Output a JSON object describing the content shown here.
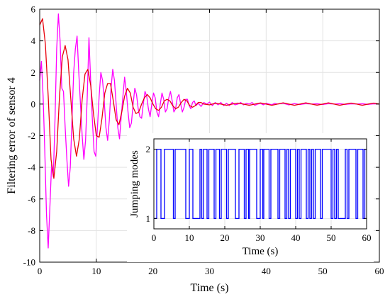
{
  "chart_data": [
    {
      "type": "line",
      "xlabel": "Time (s)",
      "ylabel": "Filtering error of sensor 4",
      "xlim": [
        0,
        60
      ],
      "ylim": [
        -10,
        6
      ],
      "xticks": [
        0,
        10,
        20,
        30,
        40,
        50,
        60
      ],
      "yticks": [
        -10,
        -8,
        -6,
        -4,
        -2,
        0,
        2,
        4,
        6
      ],
      "grid": true,
      "colors": {
        "red_series": "#e8000b",
        "magenta_series": "#ff00ff"
      },
      "series": [
        {
          "points": [
            [
              0,
              5.0
            ],
            [
              0.5,
              5.4
            ],
            [
              1,
              3.8
            ],
            [
              1.5,
              0.5
            ],
            [
              2,
              -3.5
            ],
            [
              2.5,
              -4.7
            ],
            [
              3,
              -3.0
            ],
            [
              3.5,
              0.5
            ],
            [
              4,
              3.0
            ],
            [
              4.5,
              3.7
            ],
            [
              5,
              2.8
            ],
            [
              5.5,
              0.3
            ],
            [
              6,
              -2.2
            ],
            [
              6.5,
              -3.3
            ],
            [
              7,
              -2.2
            ],
            [
              7.5,
              0.3
            ],
            [
              8,
              1.9
            ],
            [
              8.5,
              2.2
            ],
            [
              9,
              1.2
            ],
            [
              9.5,
              -0.6
            ],
            [
              10,
              -2.0
            ],
            [
              10.5,
              -2.1
            ],
            [
              11,
              -0.9
            ],
            [
              11.5,
              0.7
            ],
            [
              12,
              1.3
            ],
            [
              12.5,
              1.3
            ],
            [
              13,
              0.2
            ],
            [
              13.5,
              -1.0
            ],
            [
              14,
              -1.3
            ],
            [
              14.5,
              -0.5
            ],
            [
              15,
              0.5
            ],
            [
              15.5,
              1.0
            ],
            [
              16,
              0.7
            ],
            [
              16.5,
              -0.2
            ],
            [
              17,
              -0.6
            ],
            [
              17.5,
              -0.5
            ],
            [
              18,
              0.0
            ],
            [
              18.5,
              0.4
            ],
            [
              19,
              0.6
            ],
            [
              19.5,
              0.4
            ],
            [
              20,
              0.0
            ],
            [
              20.5,
              -0.3
            ],
            [
              21,
              -0.4
            ],
            [
              21.5,
              -0.2
            ],
            [
              22,
              0.2
            ],
            [
              22.5,
              0.3
            ],
            [
              23,
              0.2
            ],
            [
              23.5,
              -0.1
            ],
            [
              24,
              -0.3
            ],
            [
              24.5,
              -0.2
            ],
            [
              25,
              0.1
            ],
            [
              25.5,
              0.3
            ],
            [
              26,
              0.2
            ],
            [
              26.5,
              -0.1
            ],
            [
              27,
              -0.2
            ],
            [
              27.5,
              -0.1
            ],
            [
              28,
              0.1
            ],
            [
              28.5,
              0.1
            ],
            [
              29,
              0.0
            ],
            [
              30,
              -0.05
            ],
            [
              31,
              0.05
            ],
            [
              32,
              0.0
            ],
            [
              33,
              -0.08
            ],
            [
              34,
              0.0
            ],
            [
              35,
              0.06
            ],
            [
              36,
              0.0
            ],
            [
              37,
              -0.08
            ],
            [
              38,
              0.0
            ],
            [
              39,
              0.07
            ],
            [
              40,
              0.0
            ],
            [
              41,
              -0.08
            ],
            [
              42,
              0.0
            ],
            [
              43,
              0.08
            ],
            [
              44,
              0.0
            ],
            [
              45,
              -0.08
            ],
            [
              46,
              0.0
            ],
            [
              47,
              0.08
            ],
            [
              48,
              0.0
            ],
            [
              49,
              -0.07
            ],
            [
              50,
              0.0
            ],
            [
              51,
              0.08
            ],
            [
              52,
              0.0
            ],
            [
              53,
              -0.08
            ],
            [
              54,
              0.0
            ],
            [
              55,
              0.06
            ],
            [
              56,
              0.0
            ],
            [
              57,
              -0.08
            ],
            [
              58,
              0.0
            ],
            [
              59,
              0.06
            ],
            [
              60,
              0.0
            ]
          ]
        },
        {
          "points": [
            [
              0,
              1.5
            ],
            [
              0.3,
              2.7
            ],
            [
              0.6,
              0.5
            ],
            [
              0.9,
              -3.0
            ],
            [
              1.2,
              -7.0
            ],
            [
              1.5,
              -9.1
            ],
            [
              1.8,
              -6.5
            ],
            [
              2.1,
              -3.8
            ],
            [
              2.4,
              -4.6
            ],
            [
              2.7,
              -1.0
            ],
            [
              3.0,
              3.5
            ],
            [
              3.3,
              5.7
            ],
            [
              3.6,
              4.0
            ],
            [
              3.9,
              1.0
            ],
            [
              4.2,
              0.8
            ],
            [
              4.5,
              -1.5
            ],
            [
              4.8,
              -3.5
            ],
            [
              5.1,
              -5.2
            ],
            [
              5.4,
              -4.0
            ],
            [
              5.7,
              -1.0
            ],
            [
              6.0,
              2.0
            ],
            [
              6.3,
              3.5
            ],
            [
              6.6,
              4.3
            ],
            [
              6.9,
              2.0
            ],
            [
              7.2,
              0.0
            ],
            [
              7.5,
              -2.0
            ],
            [
              7.8,
              -3.5
            ],
            [
              8.1,
              -2.3
            ],
            [
              8.4,
              0.5
            ],
            [
              8.7,
              4.2
            ],
            [
              9.0,
              1.5
            ],
            [
              9.3,
              -1.0
            ],
            [
              9.6,
              -3.0
            ],
            [
              9.9,
              -3.3
            ],
            [
              10.2,
              -1.5
            ],
            [
              10.5,
              0.5
            ],
            [
              10.8,
              2.0
            ],
            [
              11.1,
              1.5
            ],
            [
              11.4,
              0.2
            ],
            [
              11.7,
              -1.5
            ],
            [
              12.0,
              -2.3
            ],
            [
              12.3,
              -1.0
            ],
            [
              12.6,
              1.0
            ],
            [
              12.9,
              2.2
            ],
            [
              13.2,
              1.5
            ],
            [
              13.5,
              0.0
            ],
            [
              13.8,
              -1.5
            ],
            [
              14.1,
              -2.2
            ],
            [
              14.4,
              -0.8
            ],
            [
              14.7,
              0.5
            ],
            [
              15.0,
              1.7
            ],
            [
              15.3,
              0.8
            ],
            [
              15.6,
              -0.5
            ],
            [
              15.9,
              -1.5
            ],
            [
              16.2,
              -1.2
            ],
            [
              16.5,
              0.0
            ],
            [
              16.8,
              1.0
            ],
            [
              17.1,
              0.6
            ],
            [
              17.4,
              -0.3
            ],
            [
              17.7,
              -0.8
            ],
            [
              18.0,
              -0.9
            ],
            [
              18.3,
              0.0
            ],
            [
              18.6,
              0.8
            ],
            [
              18.9,
              0.5
            ],
            [
              19.2,
              -0.3
            ],
            [
              19.5,
              -0.8
            ],
            [
              19.8,
              0.0
            ],
            [
              20.1,
              0.7
            ],
            [
              20.4,
              0.4
            ],
            [
              20.7,
              -0.5
            ],
            [
              21.0,
              -0.8
            ],
            [
              21.3,
              0.0
            ],
            [
              21.6,
              0.7
            ],
            [
              21.9,
              0.3
            ],
            [
              22.2,
              -0.5
            ],
            [
              22.5,
              -0.3
            ],
            [
              22.8,
              0.4
            ],
            [
              23.1,
              0.8
            ],
            [
              23.4,
              0.2
            ],
            [
              23.7,
              -0.5
            ],
            [
              24.0,
              -0.3
            ],
            [
              24.3,
              0.4
            ],
            [
              24.6,
              0.6
            ],
            [
              24.9,
              0.0
            ],
            [
              25.2,
              -0.5
            ],
            [
              25.5,
              -0.2
            ],
            [
              25.8,
              0.3
            ],
            [
              26.1,
              0.3
            ],
            [
              26.4,
              -0.1
            ],
            [
              26.7,
              -0.3
            ],
            [
              27.0,
              0.1
            ],
            [
              27.3,
              0.2
            ],
            [
              27.6,
              -0.1
            ],
            [
              28.0,
              0.05
            ],
            [
              28.5,
              -0.15
            ],
            [
              29.0,
              0.1
            ],
            [
              29.5,
              0.0
            ],
            [
              30.0,
              0.12
            ],
            [
              30.5,
              -0.1
            ],
            [
              31.0,
              0.1
            ],
            [
              31.5,
              -0.05
            ],
            [
              32.0,
              0.1
            ],
            [
              32.5,
              -0.1
            ],
            [
              33.0,
              0.05
            ],
            [
              33.5,
              -0.1
            ],
            [
              34.0,
              0.1
            ],
            [
              34.5,
              -0.05
            ],
            [
              35.0,
              0.0
            ],
            [
              35.5,
              0.1
            ],
            [
              36.0,
              -0.05
            ],
            [
              36.5,
              0.05
            ],
            [
              37.0,
              0.0
            ],
            [
              37.5,
              0.1
            ],
            [
              38.0,
              -0.08
            ],
            [
              38.5,
              0.0
            ],
            [
              39.0,
              0.05
            ],
            [
              39.5,
              -0.05
            ],
            [
              40.0,
              0.05
            ],
            [
              40.5,
              0.0
            ],
            [
              41.0,
              -0.05
            ],
            [
              41.5,
              0.05
            ],
            [
              42.0,
              0.0
            ],
            [
              43.0,
              0.05
            ],
            [
              44.0,
              -0.05
            ],
            [
              45.0,
              0.03
            ],
            [
              46.0,
              -0.03
            ],
            [
              47.0,
              0.03
            ],
            [
              48.0,
              0.0
            ],
            [
              49.0,
              0.02
            ],
            [
              50.0,
              -0.03
            ],
            [
              51.0,
              0.03
            ],
            [
              52.0,
              0.0
            ],
            [
              53.0,
              0.02
            ],
            [
              54.0,
              -0.02
            ],
            [
              55.0,
              0.02
            ],
            [
              56.0,
              0.0
            ],
            [
              57.0,
              0.02
            ],
            [
              58.0,
              -0.02
            ],
            [
              59.0,
              0.02
            ],
            [
              60.0,
              0.0
            ]
          ]
        }
      ]
    },
    {
      "type": "line",
      "step": true,
      "xlabel": "Time (s)",
      "ylabel": "Jumping modes",
      "xlim": [
        0,
        60
      ],
      "ylim": [
        0.85,
        2.15
      ],
      "xticks": [
        0,
        10,
        20,
        30,
        40,
        50,
        60
      ],
      "yticks": [
        1,
        2
      ],
      "color": "#0000ff",
      "switch_times": [
        0.8,
        2,
        3,
        5.5,
        6,
        9,
        10,
        11,
        13,
        13.5,
        14,
        15,
        15.5,
        17,
        17.5,
        18.5,
        19,
        20.5,
        21,
        23,
        24,
        25.5,
        26,
        26.7,
        27,
        29,
        30,
        30.7,
        31,
        32.5,
        33,
        35,
        35.5,
        37,
        37.5,
        38,
        38.5,
        40,
        40.5,
        41,
        41.5,
        43,
        43.5,
        44,
        44.5,
        45,
        45.5,
        47,
        47.5,
        50,
        50.5,
        51,
        51.5,
        52,
        54,
        54.5,
        55,
        57,
        57.5,
        59,
        59.5,
        60
      ],
      "initial_mode": 1
    }
  ]
}
